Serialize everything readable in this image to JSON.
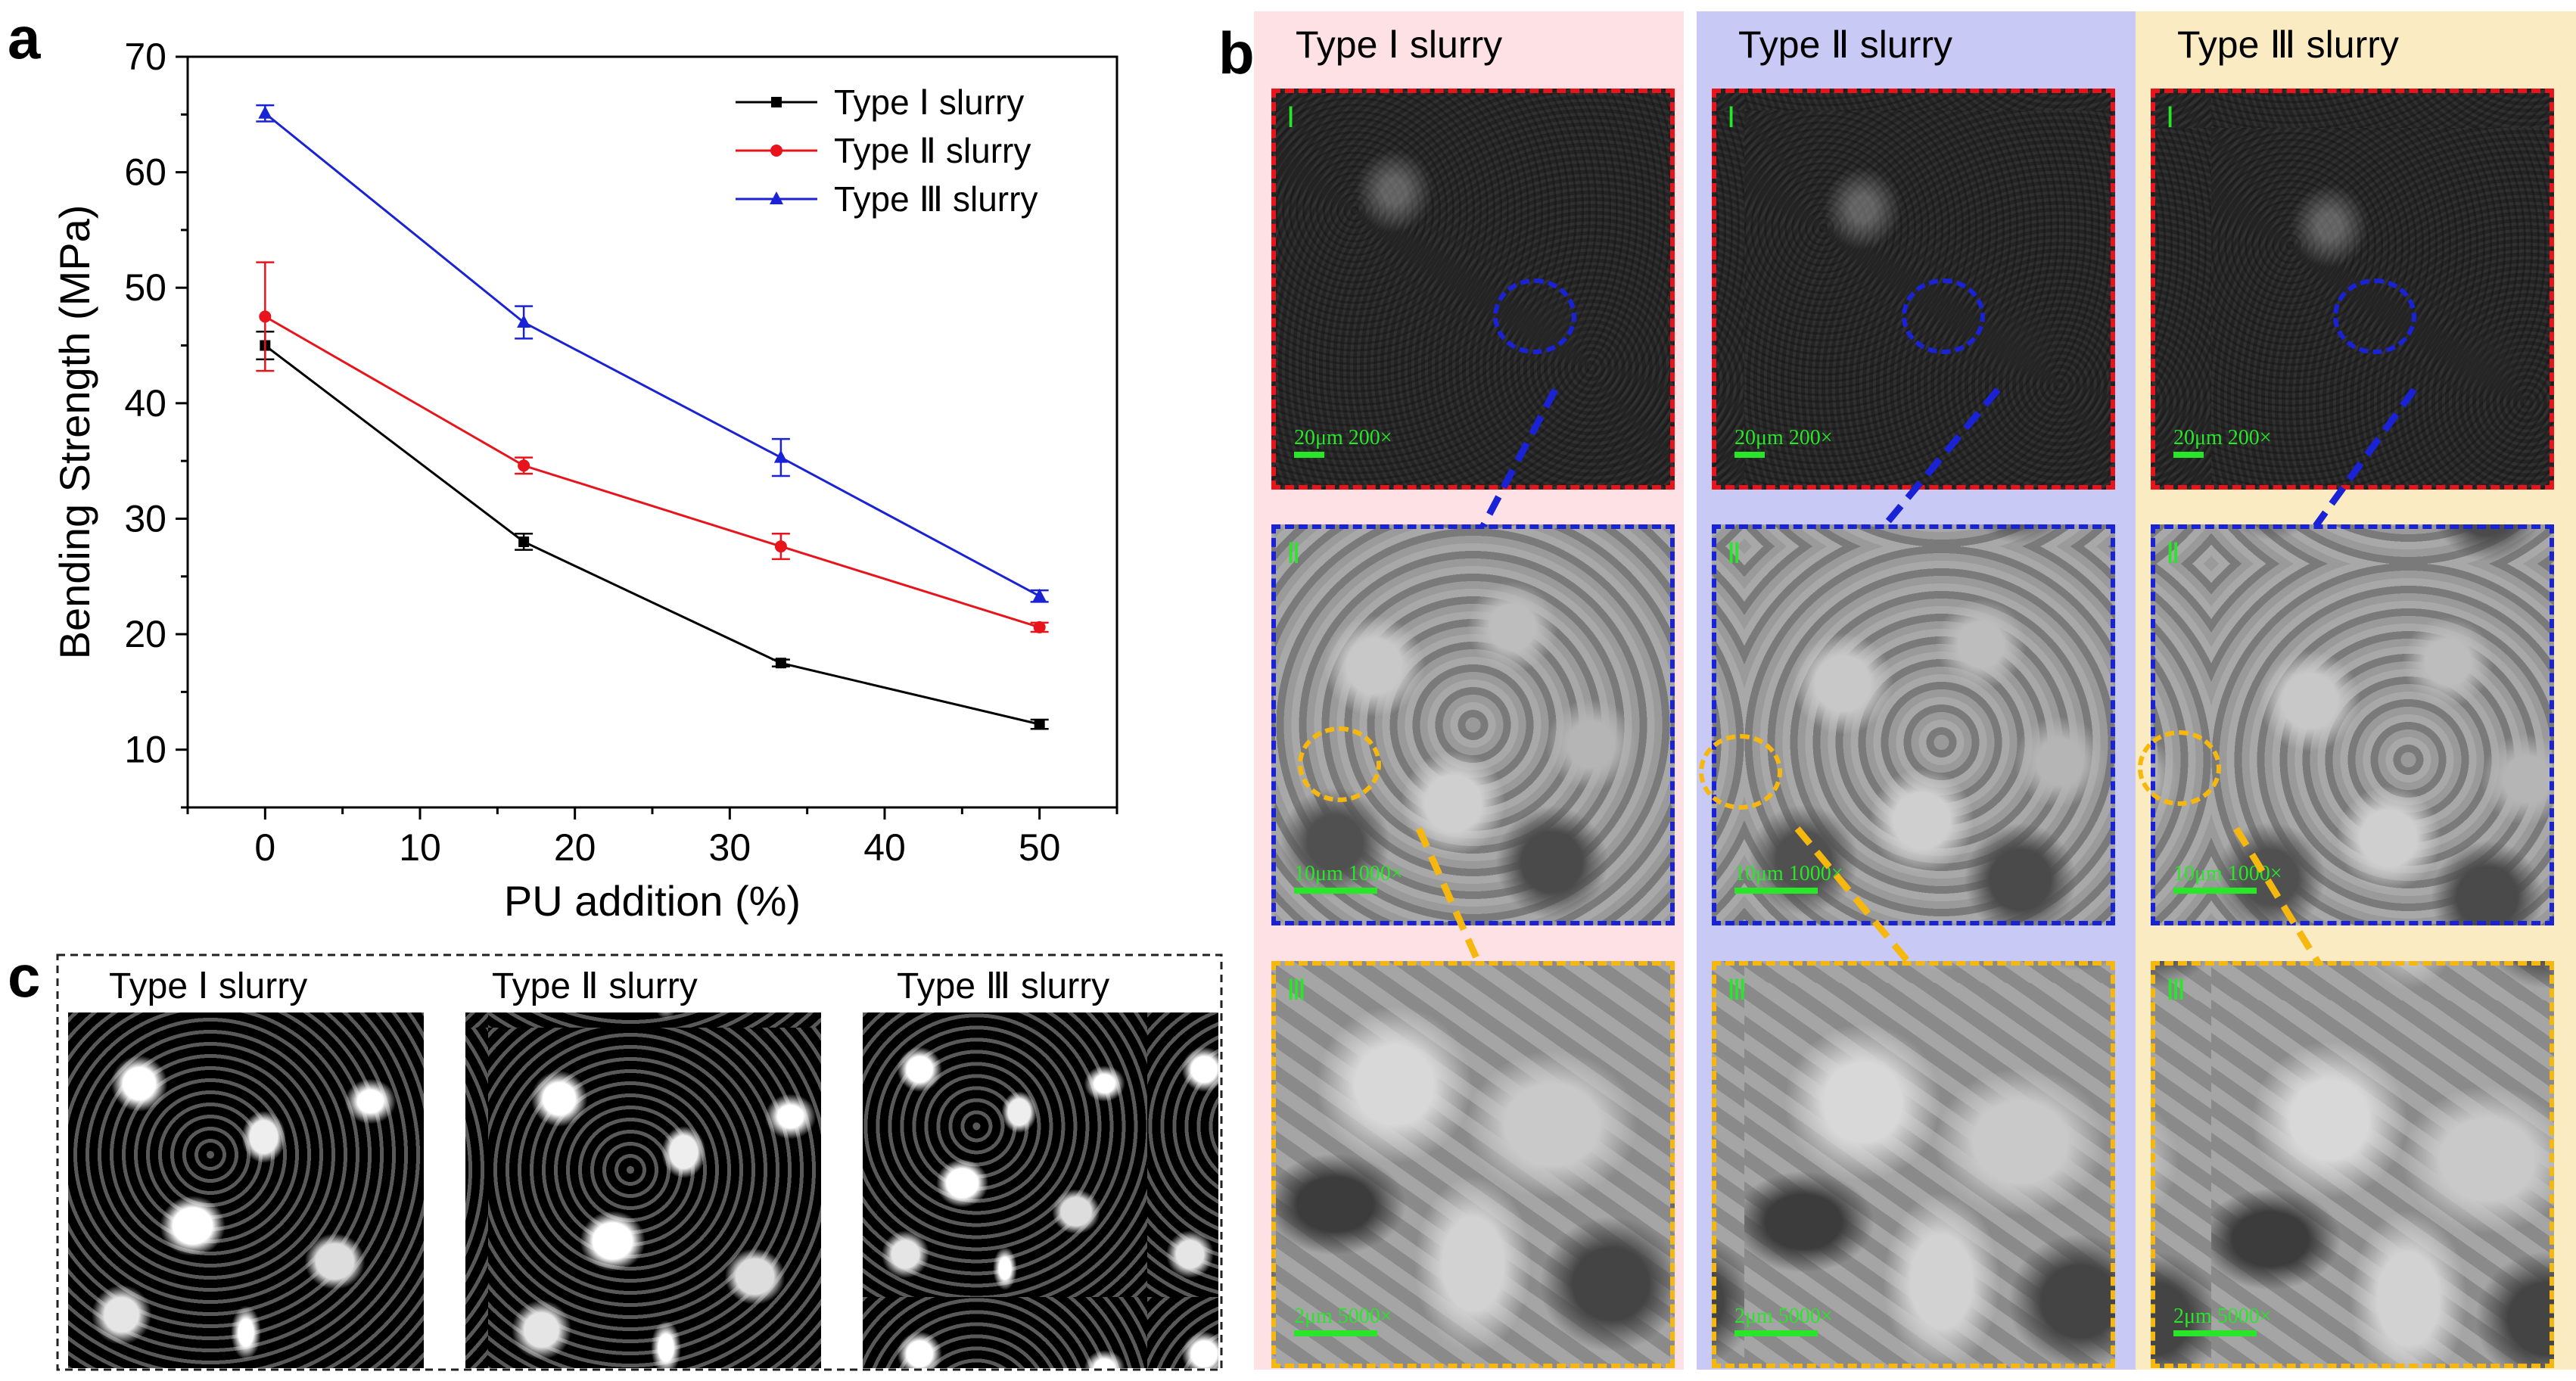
{
  "panel_labels": {
    "a": "a",
    "b": "b",
    "c": "c"
  },
  "chart_data": {
    "type": "line",
    "xlabel": "PU addition (%)",
    "ylabel": "Bending Strength (MPa)",
    "xlim": [
      -5,
      55
    ],
    "ylim": [
      5,
      70
    ],
    "xticks": [
      0,
      10,
      20,
      30,
      40,
      50
    ],
    "yticks": [
      10,
      20,
      30,
      40,
      50,
      60,
      70
    ],
    "x": [
      0,
      16.7,
      33.3,
      50
    ],
    "grid": false,
    "legend_position": "top-right",
    "series": [
      {
        "name": "Type Ⅰ   slurry",
        "color": "#000000",
        "marker": "square",
        "values": [
          45.0,
          28.0,
          17.5,
          12.2
        ],
        "errors": [
          1.2,
          0.7,
          0.3,
          0.4
        ]
      },
      {
        "name": "Type Ⅱ  slurry",
        "color": "#e8141b",
        "marker": "circle",
        "values": [
          47.5,
          34.6,
          27.6,
          20.6
        ],
        "errors": [
          4.7,
          0.7,
          1.1,
          0.4
        ]
      },
      {
        "name": "Type Ⅲ slurry",
        "color": "#1a22d6",
        "marker": "triangle",
        "values": [
          65.1,
          47.0,
          35.3,
          23.3
        ],
        "errors": [
          0.7,
          1.4,
          1.6,
          0.5
        ]
      }
    ]
  },
  "panel_b": {
    "columns": [
      {
        "title": "Type Ⅰ slurry",
        "bg": "#fde1e4"
      },
      {
        "title": "Type Ⅱ slurry",
        "bg": "#c9c9f6"
      },
      {
        "title": "Type Ⅲ slurry",
        "bg": "#fbebc2"
      }
    ],
    "rows": [
      {
        "roman": "Ⅰ",
        "scale": "20μm   200×"
      },
      {
        "roman": "Ⅱ",
        "scale": "10μm   1000×"
      },
      {
        "roman": "Ⅲ",
        "scale": "2μm   5000×"
      }
    ]
  },
  "panel_c": {
    "titles": [
      "Type Ⅰ slurry",
      "Type Ⅱ slurry",
      "Type Ⅲ slurry"
    ]
  }
}
